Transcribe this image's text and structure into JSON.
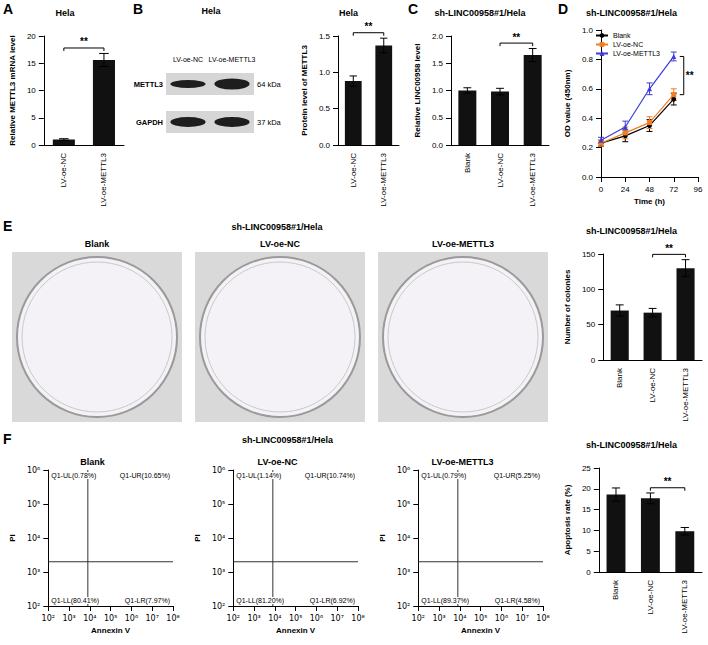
{
  "chart_data": [
    {
      "panel": "A",
      "type": "bar",
      "title": "Hela",
      "ylabel": "Relative METTL3 mRNA level",
      "categories": [
        "LV-oe-NC",
        "LV-oe-METTL3"
      ],
      "values": [
        1.0,
        15.6
      ],
      "errors": [
        0.15,
        1.2
      ],
      "color": "#111111",
      "ylim": [
        0,
        20
      ],
      "yticks": [
        0,
        5,
        10,
        15,
        20
      ],
      "grid": false,
      "significance": [
        {
          "from": "LV-oe-NC",
          "to": "LV-oe-METTL3",
          "label": "**"
        }
      ]
    },
    {
      "type": "bar",
      "title": "Hela",
      "ylabel": "Protein level of METTL3",
      "categories": [
        "LV-oe-NC",
        "LV-oe-METTL3"
      ],
      "values": [
        0.88,
        1.37
      ],
      "errors": [
        0.07,
        0.1
      ],
      "color": "#111111",
      "ylim": [
        0,
        1.5
      ],
      "yticks": [
        {
          "value": 0,
          "label": "0.0"
        },
        0.5,
        {
          "value": 1,
          "label": "1.0"
        },
        1.5
      ],
      "grid": false,
      "significance": [
        {
          "from": "LV-oe-NC",
          "to": "LV-oe-METTL3",
          "label": "**"
        }
      ]
    },
    {
      "panel": "C",
      "type": "bar",
      "title": "sh-LINC00958#1/Hela",
      "ylabel": "Relative LINC00958 level",
      "categories": [
        "Blank",
        "LV-oe-NC",
        "LV-oe-METTL3"
      ],
      "values": [
        1.0,
        0.98,
        1.65
      ],
      "errors": [
        0.05,
        0.06,
        0.12
      ],
      "color": "#111111",
      "ylim": [
        0,
        2
      ],
      "yticks": [
        {
          "value": 0,
          "label": "0.0"
        },
        0.5,
        {
          "value": 1,
          "label": "1.0"
        },
        1.5,
        {
          "value": 2,
          "label": "2.0"
        }
      ],
      "grid": false,
      "significance": [
        {
          "from": "LV-oe-NC",
          "to": "LV-oe-METTL3",
          "label": "**"
        }
      ]
    },
    {
      "panel": "D",
      "type": "line",
      "title": "sh-LINC00958#1/Hela",
      "xlabel": "Time (h)",
      "ylabel": "OD value (450nm)",
      "x": [
        0,
        24,
        48,
        72
      ],
      "xlim": [
        0,
        96
      ],
      "xticks": [
        0,
        24,
        48,
        72,
        96
      ],
      "ylim": [
        0,
        1
      ],
      "yticks": [
        {
          "value": 0,
          "label": "0.0"
        },
        0.2,
        0.4,
        0.6,
        0.8,
        {
          "value": 1,
          "label": "1.0"
        }
      ],
      "grid": false,
      "legend": "top-left",
      "series": [
        {
          "name": "Blank",
          "color": "#000000",
          "marker": "circle",
          "values": [
            0.23,
            0.28,
            0.35,
            0.53
          ],
          "errors": [
            0.02,
            0.04,
            0.04,
            0.04
          ]
        },
        {
          "name": "LV-oe-NC",
          "color": "#f47c20",
          "marker": "square",
          "values": [
            0.23,
            0.3,
            0.37,
            0.56
          ],
          "errors": [
            0.02,
            0.04,
            0.04,
            0.04
          ]
        },
        {
          "name": "LV-oe-METTL3",
          "color": "#3b3bdb",
          "marker": "triangle",
          "values": [
            0.25,
            0.34,
            0.6,
            0.82
          ],
          "errors": [
            0.02,
            0.04,
            0.04,
            0.03
          ]
        }
      ],
      "significance": [
        {
          "at": 72,
          "from": "LV-oe-NC",
          "to": "LV-oe-METTL3",
          "label": "**"
        }
      ]
    },
    {
      "type": "bar",
      "title": "sh-LINC00958#1/Hela",
      "ylabel": "Number of colonies",
      "categories": [
        "Blank",
        "LV-oe-NC",
        "LV-oe-METTL3"
      ],
      "values": [
        70,
        67,
        130
      ],
      "errors": [
        8,
        6,
        12
      ],
      "color": "#111111",
      "ylim": [
        0,
        150
      ],
      "yticks": [
        0,
        50,
        100,
        150
      ],
      "grid": false,
      "significance": [
        {
          "from": "LV-oe-NC",
          "to": "LV-oe-METTL3",
          "label": "**"
        }
      ]
    },
    {
      "type": "bar",
      "title": "sh-LINC00958#1/Hela",
      "ylabel": "Apoptosis rate (%)",
      "categories": [
        "Blank",
        "LV-oe-NC",
        "LV-oe-METTL3"
      ],
      "values": [
        18.6,
        17.7,
        9.8
      ],
      "errors": [
        1.6,
        1.3,
        0.9
      ],
      "color": "#111111",
      "ylim": [
        0,
        25
      ],
      "yticks": [
        0,
        5,
        10,
        15,
        20,
        25
      ],
      "grid": false,
      "significance": [
        {
          "from": "LV-oe-NC",
          "to": "LV-oe-METTL3",
          "label": "**"
        }
      ]
    }
  ],
  "blot": {
    "panel": "B",
    "title": "Hela",
    "lanes": [
      "LV-oe-NC",
      "LV-oe-METTL3"
    ],
    "rows": [
      {
        "name": "METTL3",
        "size": "64 kDa"
      },
      {
        "name": "GAPDH",
        "size": "37 kDa"
      }
    ]
  },
  "plates": {
    "panel": "E",
    "title": "sh-LINC00958#1/Hela",
    "labels": [
      "Blank",
      "LV-oe-NC",
      "LV-oe-METTL3"
    ]
  },
  "flow": {
    "panel": "F",
    "title": "sh-LINC00958#1/Hela",
    "xlabel": "Annexin V",
    "ylabel": "PI",
    "xlim": [
      100,
      100000000
    ],
    "ylim": [
      100,
      1000000
    ],
    "xticks": [
      {
        "value": 100,
        "label": "10²"
      },
      {
        "value": 1000,
        "label": "10³"
      },
      {
        "value": 10000,
        "label": "10⁴"
      },
      {
        "value": 100000,
        "label": "10⁵"
      },
      {
        "value": 1000000,
        "label": "10⁶"
      },
      {
        "value": 10000000,
        "label": "10⁷"
      },
      {
        "value": 100000000,
        "label": "10⁸"
      }
    ],
    "yticks": [
      {
        "value": 100,
        "label": "10²"
      },
      {
        "value": 1000,
        "label": "10³"
      },
      {
        "value": 10000,
        "label": "10⁴"
      },
      {
        "value": 100000,
        "label": "10⁵"
      },
      {
        "value": 1000000,
        "label": "10⁶"
      }
    ],
    "gate": {
      "x": 8000,
      "y": 2000
    },
    "plots": [
      {
        "title": "Blank",
        "quadrants": {
          "UL": "Q1-UL(0.78%)",
          "UR": "Q1-UR(10.65%)",
          "LL": "Q1-LL(80.41%)",
          "LR": "Q1-LR(7.97%)"
        }
      },
      {
        "title": "LV-oe-NC",
        "quadrants": {
          "UL": "Q1-UL(1.14%)",
          "UR": "Q1-UR(10.74%)",
          "LL": "Q1-LL(81.20%)",
          "LR": "Q1-LR(6.92%)"
        }
      },
      {
        "title": "LV-oe-METTL3",
        "quadrants": {
          "UL": "Q1-UL(0.79%)",
          "UR": "Q1-UR(5.25%)",
          "LL": "Q1-LL(89.37%)",
          "LR": "Q1-LR(4.58%)"
        }
      }
    ]
  }
}
